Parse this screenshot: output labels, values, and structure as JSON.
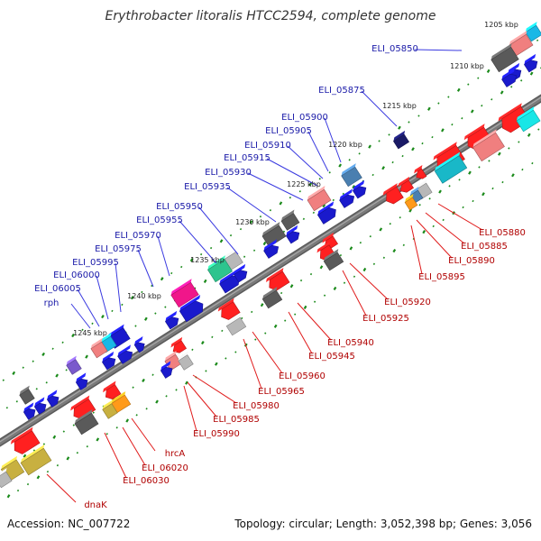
{
  "header": {
    "title": "Erythrobacter litoralis HTCC2594, complete genome"
  },
  "footer": {
    "accession": "Accession: NC_007722",
    "summary": "Topology: circular; Length: 3,052,398 bp; Genes: 3,056"
  },
  "colors": {
    "forward_label": "#1a1aa8",
    "reverse_label": "#b00000",
    "backbone": "#7a7a7a",
    "tick": "#1a8a1a"
  },
  "scale": [
    "1205 kbp",
    "1210 kbp",
    "1215 kbp",
    "1220 kbp",
    "1225 kbp",
    "1230 kbp",
    "1235 kbp",
    "1240 kbp",
    "1245 kbp"
  ],
  "genes": {
    "forward": [
      {
        "id": "ELI_05850"
      },
      {
        "id": "ELI_05875"
      },
      {
        "id": "ELI_05900"
      },
      {
        "id": "ELI_05905"
      },
      {
        "id": "ELI_05910"
      },
      {
        "id": "ELI_05915"
      },
      {
        "id": "ELI_05930"
      },
      {
        "id": "ELI_05935"
      },
      {
        "id": "ELI_05950"
      },
      {
        "id": "ELI_05955"
      },
      {
        "id": "ELI_05970"
      },
      {
        "id": "ELI_05975"
      },
      {
        "id": "ELI_05995"
      },
      {
        "id": "ELI_06000"
      },
      {
        "id": "ELI_06005"
      },
      {
        "id": "rph"
      }
    ],
    "reverse": [
      {
        "id": "ELI_05880"
      },
      {
        "id": "ELI_05885"
      },
      {
        "id": "ELI_05890"
      },
      {
        "id": "ELI_05895"
      },
      {
        "id": "ELI_05920"
      },
      {
        "id": "ELI_05925"
      },
      {
        "id": "ELI_05940"
      },
      {
        "id": "ELI_05945"
      },
      {
        "id": "ELI_05960"
      },
      {
        "id": "ELI_05965"
      },
      {
        "id": "ELI_05980"
      },
      {
        "id": "ELI_05985"
      },
      {
        "id": "ELI_05990"
      },
      {
        "id": "hrcA"
      },
      {
        "id": "ELI_06020"
      },
      {
        "id": "ELI_06030"
      },
      {
        "id": "dnaK"
      }
    ]
  }
}
